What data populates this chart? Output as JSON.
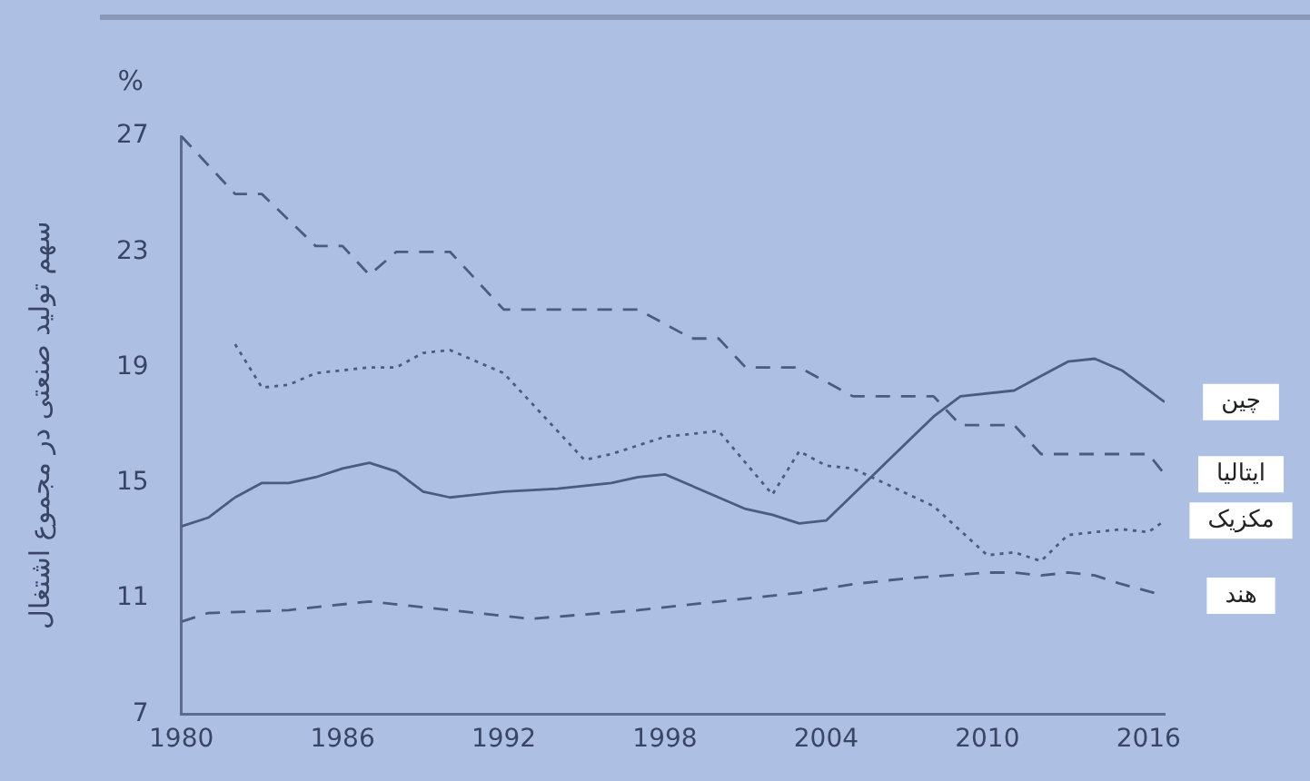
{
  "chart_data": {
    "type": "line",
    "ylabel": "سهم تولید صنعتی در مجموع اشتغال",
    "xlim": [
      1980,
      2016.6
    ],
    "xticks": [
      1980,
      1986,
      1992,
      1998,
      2004,
      2010,
      2016
    ],
    "ylim": [
      7,
      27
    ],
    "yticks": [
      7,
      11,
      15,
      19,
      23,
      27
    ],
    "grid": false,
    "legend": false,
    "marker": "none",
    "annotations": [
      "%"
    ],
    "series": [
      {
        "name": "ایتالیا",
        "color": "#4b5b82",
        "line_style": "dashed",
        "x": [
          1980,
          1982,
          1983,
          1985,
          1986,
          1987,
          1988,
          1990,
          1992,
          1996,
          1997,
          1999,
          2000,
          2001,
          2003,
          2005,
          2008,
          2009,
          2011,
          2012,
          2016,
          2016.6
        ],
        "values": [
          27,
          25,
          25,
          23.2,
          23.2,
          22.2,
          23,
          23,
          21,
          21,
          21,
          20,
          20,
          19,
          19,
          18,
          18,
          17,
          17,
          16,
          16,
          15.3
        ]
      },
      {
        "name": "مکزیک",
        "color": "#4b5b82",
        "line_style": "dotted",
        "x": [
          1982,
          1983,
          1984,
          1985,
          1987,
          1988,
          1989,
          1990,
          1992,
          1995,
          1996,
          1998,
          2000,
          2002,
          2003,
          2004,
          2005,
          2008,
          2010,
          2011,
          2012,
          2013,
          2015,
          2016,
          2016.6
        ],
        "values": [
          19.8,
          18.3,
          18.4,
          18.8,
          19,
          19,
          19.5,
          19.6,
          18.8,
          15.8,
          16,
          16.6,
          16.8,
          14.6,
          16.1,
          15.6,
          15.5,
          14.2,
          12.5,
          12.6,
          12.3,
          13.2,
          13.4,
          13.3,
          13.7
        ]
      },
      {
        "name": "چین",
        "color": "#4b5b82",
        "line_style": "solid",
        "x": [
          1980,
          1981,
          1982,
          1983,
          1984,
          1985,
          1986,
          1987,
          1988,
          1989,
          1990,
          1992,
          1994,
          1996,
          1997,
          1998,
          2000,
          2001,
          2002,
          2003,
          2004,
          2006,
          2008,
          2009,
          2011,
          2012,
          2013,
          2014,
          2015,
          2016.6
        ],
        "values": [
          13.5,
          13.8,
          14.5,
          15,
          15,
          15.2,
          15.5,
          15.7,
          15.4,
          14.7,
          14.5,
          14.7,
          14.8,
          15,
          15.2,
          15.3,
          14.5,
          14.1,
          13.9,
          13.6,
          13.7,
          15.5,
          17.3,
          18,
          18.2,
          18.7,
          19.2,
          19.3,
          18.9,
          17.8
        ]
      },
      {
        "name": "هند",
        "color": "#4b5b82",
        "line_style": "dashed",
        "x": [
          1980,
          1981,
          1984,
          1987,
          1990,
          1993,
          1997,
          2000,
          2003,
          2005,
          2007,
          2010,
          2011,
          2012,
          2013,
          2014,
          2015,
          2016.6
        ],
        "values": [
          10.2,
          10.5,
          10.6,
          10.9,
          10.6,
          10.3,
          10.6,
          10.9,
          11.2,
          11.5,
          11.7,
          11.9,
          11.9,
          11.8,
          11.9,
          11.8,
          11.5,
          11.1
        ]
      }
    ]
  }
}
